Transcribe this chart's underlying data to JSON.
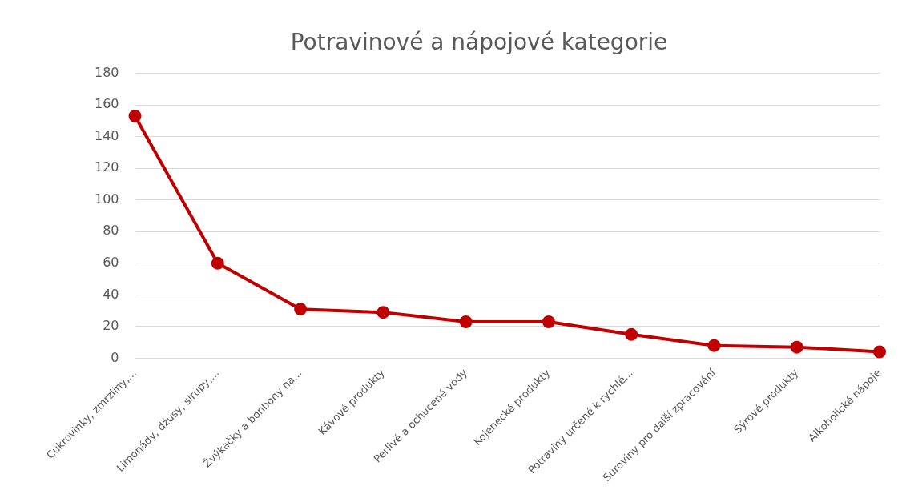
{
  "chart_data": {
    "type": "line",
    "title": "Potravinové a nápojové kategorie",
    "categories": [
      "Cukrovinky, zmrzliny,...",
      "Limonády, džusy, sirupy,...",
      "Žvýkačky a bonbony na...",
      "Kávové produkty",
      "Perlivé a ochucené vody",
      "Kojenecké produkty",
      "Potraviny určené k rychlé...",
      "Suroviny pro další zpracování",
      "Sýrové produkty",
      "Alkoholické nápoje"
    ],
    "series": [
      {
        "color": "#c00000",
        "values": [
          153,
          60,
          31,
          29,
          23,
          23,
          15,
          8,
          7,
          4
        ]
      }
    ],
    "ylim": [
      0,
      180
    ],
    "yticks": [
      0,
      20,
      40,
      60,
      80,
      100,
      120,
      140,
      160,
      180
    ],
    "grid": "y",
    "legend": false,
    "marker": "circle",
    "line_style": "solid"
  }
}
